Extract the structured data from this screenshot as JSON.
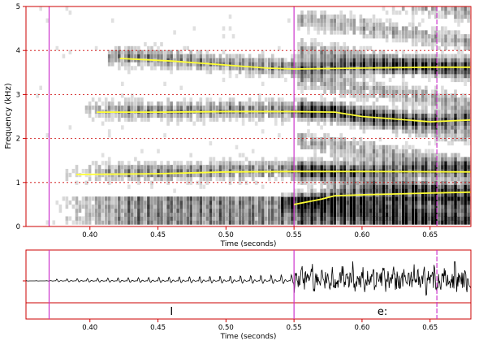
{
  "spectrogram": {
    "ylabel": "Frequency (kHz)",
    "xlabel": "Time (seconds)",
    "xlim": [
      0.353,
      0.68
    ],
    "ylim": [
      0,
      5
    ],
    "y_ticks": [
      "0",
      "1",
      "2",
      "3",
      "4",
      "5"
    ],
    "y_tick_values": [
      0,
      1,
      2,
      3,
      4,
      5
    ],
    "x_ticks": [
      "0.40",
      "0.45",
      "0.50",
      "0.55",
      "0.60",
      "0.65"
    ],
    "x_tick_values": [
      0.4,
      0.45,
      0.5,
      0.55,
      0.6,
      0.65
    ],
    "grid": "dashed horizontal lines at each kHz",
    "boundaries": [
      0.37,
      0.55,
      0.655
    ],
    "colors": {
      "frame": "#cc0000",
      "grid": "#cc0000",
      "boundary": "#cc33cc",
      "formant": "#ffff33"
    }
  },
  "chart_data": {
    "type": "line",
    "title": "",
    "xlabel": "Time (seconds)",
    "ylabel": "Frequency (kHz)",
    "xlim": [
      0.353,
      0.68
    ],
    "ylim": [
      0,
      5
    ],
    "grid": true,
    "series": [
      {
        "points": [
          [
            0.39,
            1.18
          ],
          [
            0.45,
            1.2
          ],
          [
            0.5,
            1.24
          ],
          [
            0.55,
            1.25
          ],
          [
            0.6,
            1.25
          ],
          [
            0.68,
            1.24
          ]
        ]
      },
      {
        "points": [
          [
            0.405,
            2.6
          ],
          [
            0.45,
            2.6
          ],
          [
            0.5,
            2.61
          ],
          [
            0.55,
            2.61
          ],
          [
            0.58,
            2.6
          ],
          [
            0.6,
            2.5
          ],
          [
            0.65,
            2.38
          ],
          [
            0.68,
            2.42
          ]
        ]
      },
      {
        "points": [
          [
            0.422,
            3.82
          ],
          [
            0.46,
            3.76
          ],
          [
            0.5,
            3.67
          ],
          [
            0.53,
            3.6
          ],
          [
            0.55,
            3.58
          ],
          [
            0.6,
            3.6
          ],
          [
            0.65,
            3.62
          ],
          [
            0.68,
            3.62
          ]
        ]
      },
      {
        "points": [
          [
            0.55,
            0.5
          ],
          [
            0.57,
            0.62
          ],
          [
            0.58,
            0.7
          ],
          [
            0.6,
            0.72
          ],
          [
            0.65,
            0.76
          ],
          [
            0.68,
            0.78
          ]
        ]
      }
    ]
  },
  "waveform_panel": {
    "xlabel": "Time (seconds)",
    "x_ticks": [
      "0.40",
      "0.45",
      "0.50",
      "0.55",
      "0.60",
      "0.65"
    ],
    "x_tick_values": [
      0.4,
      0.45,
      0.5,
      0.55,
      0.6,
      0.65
    ]
  },
  "segments": [
    {
      "label": "I",
      "start": 0.37,
      "end": 0.55
    },
    {
      "label": "e:",
      "start": 0.55,
      "end": 0.68
    }
  ]
}
